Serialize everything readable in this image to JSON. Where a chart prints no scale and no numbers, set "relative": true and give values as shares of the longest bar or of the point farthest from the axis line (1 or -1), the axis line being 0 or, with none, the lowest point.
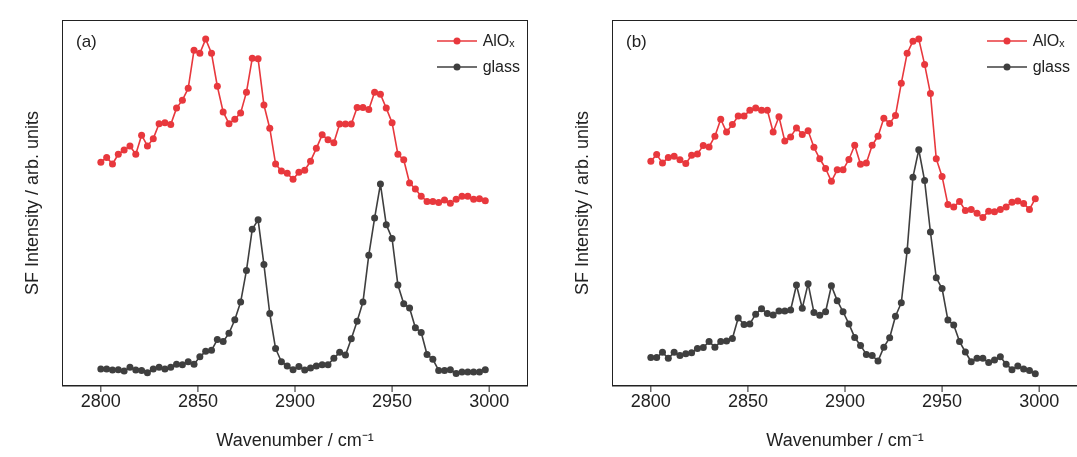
{
  "chart_data": [
    {
      "type": "line",
      "relative": true,
      "xlabel": "Wavenumber / cm⁻¹",
      "ylabel": "SF Intensity / arb. units",
      "annotations": [
        "(a)"
      ],
      "legend": "top right",
      "marker": "circle",
      "xlim": [
        2780,
        3020
      ],
      "xticks": [
        2800,
        2850,
        2900,
        2950,
        3000
      ],
      "x": [
        2800,
        2803,
        2806,
        2809,
        2812,
        2815,
        2818,
        2821,
        2824,
        2827,
        2830,
        2833,
        2836,
        2839,
        2842,
        2845,
        2848,
        2851,
        2854,
        2857,
        2860,
        2863,
        2866,
        2869,
        2872,
        2875,
        2878,
        2881,
        2884,
        2887,
        2890,
        2893,
        2896,
        2899,
        2902,
        2905,
        2908,
        2911,
        2914,
        2917,
        2920,
        2923,
        2926,
        2929,
        2932,
        2935,
        2938,
        2941,
        2944,
        2947,
        2950,
        2953,
        2956,
        2959,
        2962,
        2965,
        2968,
        2971,
        2974,
        2977,
        2980,
        2983,
        2986,
        2989,
        2992,
        2995,
        2998
      ],
      "series": [
        {
          "name": "AlOₓ",
          "color": "#e8383d",
          "values": [
            0.645,
            0.659,
            0.64,
            0.668,
            0.68,
            0.692,
            0.668,
            0.723,
            0.692,
            0.713,
            0.756,
            0.759,
            0.754,
            0.801,
            0.824,
            0.858,
            0.968,
            0.959,
            1.0,
            0.959,
            0.864,
            0.79,
            0.756,
            0.769,
            0.787,
            0.847,
            0.945,
            0.943,
            0.81,
            0.743,
            0.64,
            0.62,
            0.613,
            0.596,
            0.616,
            0.622,
            0.648,
            0.685,
            0.724,
            0.71,
            0.701,
            0.755,
            0.755,
            0.755,
            0.803,
            0.803,
            0.797,
            0.847,
            0.841,
            0.801,
            0.759,
            0.668,
            0.652,
            0.585,
            0.568,
            0.547,
            0.532,
            0.532,
            0.529,
            0.536,
            0.527,
            0.538,
            0.547,
            0.547,
            0.538,
            0.54,
            0.534
          ]
        },
        {
          "name": "glass",
          "color": "#3f3f3f",
          "values": [
            0.049,
            0.049,
            0.046,
            0.047,
            0.043,
            0.054,
            0.046,
            0.045,
            0.038,
            0.049,
            0.054,
            0.049,
            0.054,
            0.063,
            0.061,
            0.07,
            0.063,
            0.084,
            0.1,
            0.103,
            0.134,
            0.128,
            0.152,
            0.191,
            0.242,
            0.333,
            0.452,
            0.479,
            0.35,
            0.209,
            0.108,
            0.07,
            0.058,
            0.047,
            0.056,
            0.046,
            0.052,
            0.058,
            0.061,
            0.061,
            0.08,
            0.097,
            0.089,
            0.136,
            0.187,
            0.242,
            0.377,
            0.484,
            0.582,
            0.465,
            0.425,
            0.291,
            0.237,
            0.225,
            0.168,
            0.154,
            0.091,
            0.077,
            0.045,
            0.045,
            0.047,
            0.036,
            0.04,
            0.04,
            0.04,
            0.04,
            0.047
          ]
        }
      ]
    },
    {
      "type": "line",
      "relative": true,
      "xlabel": "Wavenumber / cm⁻¹",
      "ylabel": "SF Intensity / arb. units",
      "annotations": [
        "(b)"
      ],
      "legend": "top right",
      "marker": "circle",
      "xlim": [
        2780,
        3020
      ],
      "xticks": [
        2800,
        2850,
        2900,
        2950,
        3000
      ],
      "x": [
        2800,
        2803,
        2806,
        2809,
        2812,
        2815,
        2818,
        2821,
        2824,
        2827,
        2830,
        2833,
        2836,
        2839,
        2842,
        2845,
        2848,
        2851,
        2854,
        2857,
        2860,
        2863,
        2866,
        2869,
        2872,
        2875,
        2878,
        2881,
        2884,
        2887,
        2890,
        2893,
        2896,
        2899,
        2902,
        2905,
        2908,
        2911,
        2914,
        2917,
        2920,
        2923,
        2926,
        2929,
        2932,
        2935,
        2938,
        2941,
        2944,
        2947,
        2950,
        2953,
        2956,
        2959,
        2962,
        2965,
        2968,
        2971,
        2974,
        2977,
        2980,
        2983,
        2986,
        2989,
        2992,
        2995,
        2998
      ],
      "series": [
        {
          "name": "AlOₓ",
          "color": "#e8383d",
          "values": [
            0.648,
            0.667,
            0.643,
            0.659,
            0.662,
            0.652,
            0.641,
            0.665,
            0.669,
            0.693,
            0.689,
            0.72,
            0.769,
            0.732,
            0.754,
            0.778,
            0.778,
            0.795,
            0.801,
            0.795,
            0.795,
            0.732,
            0.776,
            0.706,
            0.718,
            0.744,
            0.725,
            0.736,
            0.688,
            0.655,
            0.627,
            0.59,
            0.623,
            0.623,
            0.653,
            0.694,
            0.639,
            0.643,
            0.694,
            0.72,
            0.772,
            0.757,
            0.78,
            0.873,
            0.959,
            0.994,
            1.0,
            0.927,
            0.843,
            0.655,
            0.604,
            0.523,
            0.516,
            0.532,
            0.506,
            0.509,
            0.498,
            0.486,
            0.504,
            0.502,
            0.509,
            0.516,
            0.53,
            0.533,
            0.526,
            0.509,
            0.54
          ]
        },
        {
          "name": "glass",
          "color": "#3f3f3f",
          "values": [
            0.082,
            0.082,
            0.097,
            0.08,
            0.097,
            0.088,
            0.093,
            0.096,
            0.108,
            0.111,
            0.128,
            0.112,
            0.128,
            0.13,
            0.137,
            0.196,
            0.177,
            0.179,
            0.207,
            0.223,
            0.209,
            0.205,
            0.216,
            0.216,
            0.219,
            0.291,
            0.224,
            0.295,
            0.212,
            0.204,
            0.214,
            0.289,
            0.246,
            0.214,
            0.179,
            0.14,
            0.117,
            0.091,
            0.088,
            0.072,
            0.112,
            0.139,
            0.201,
            0.24,
            0.39,
            0.602,
            0.681,
            0.592,
            0.444,
            0.312,
            0.281,
            0.19,
            0.176,
            0.128,
            0.098,
            0.07,
            0.08,
            0.08,
            0.068,
            0.075,
            0.084,
            0.063,
            0.047,
            0.058,
            0.049,
            0.045,
            0.035
          ]
        }
      ]
    }
  ]
}
